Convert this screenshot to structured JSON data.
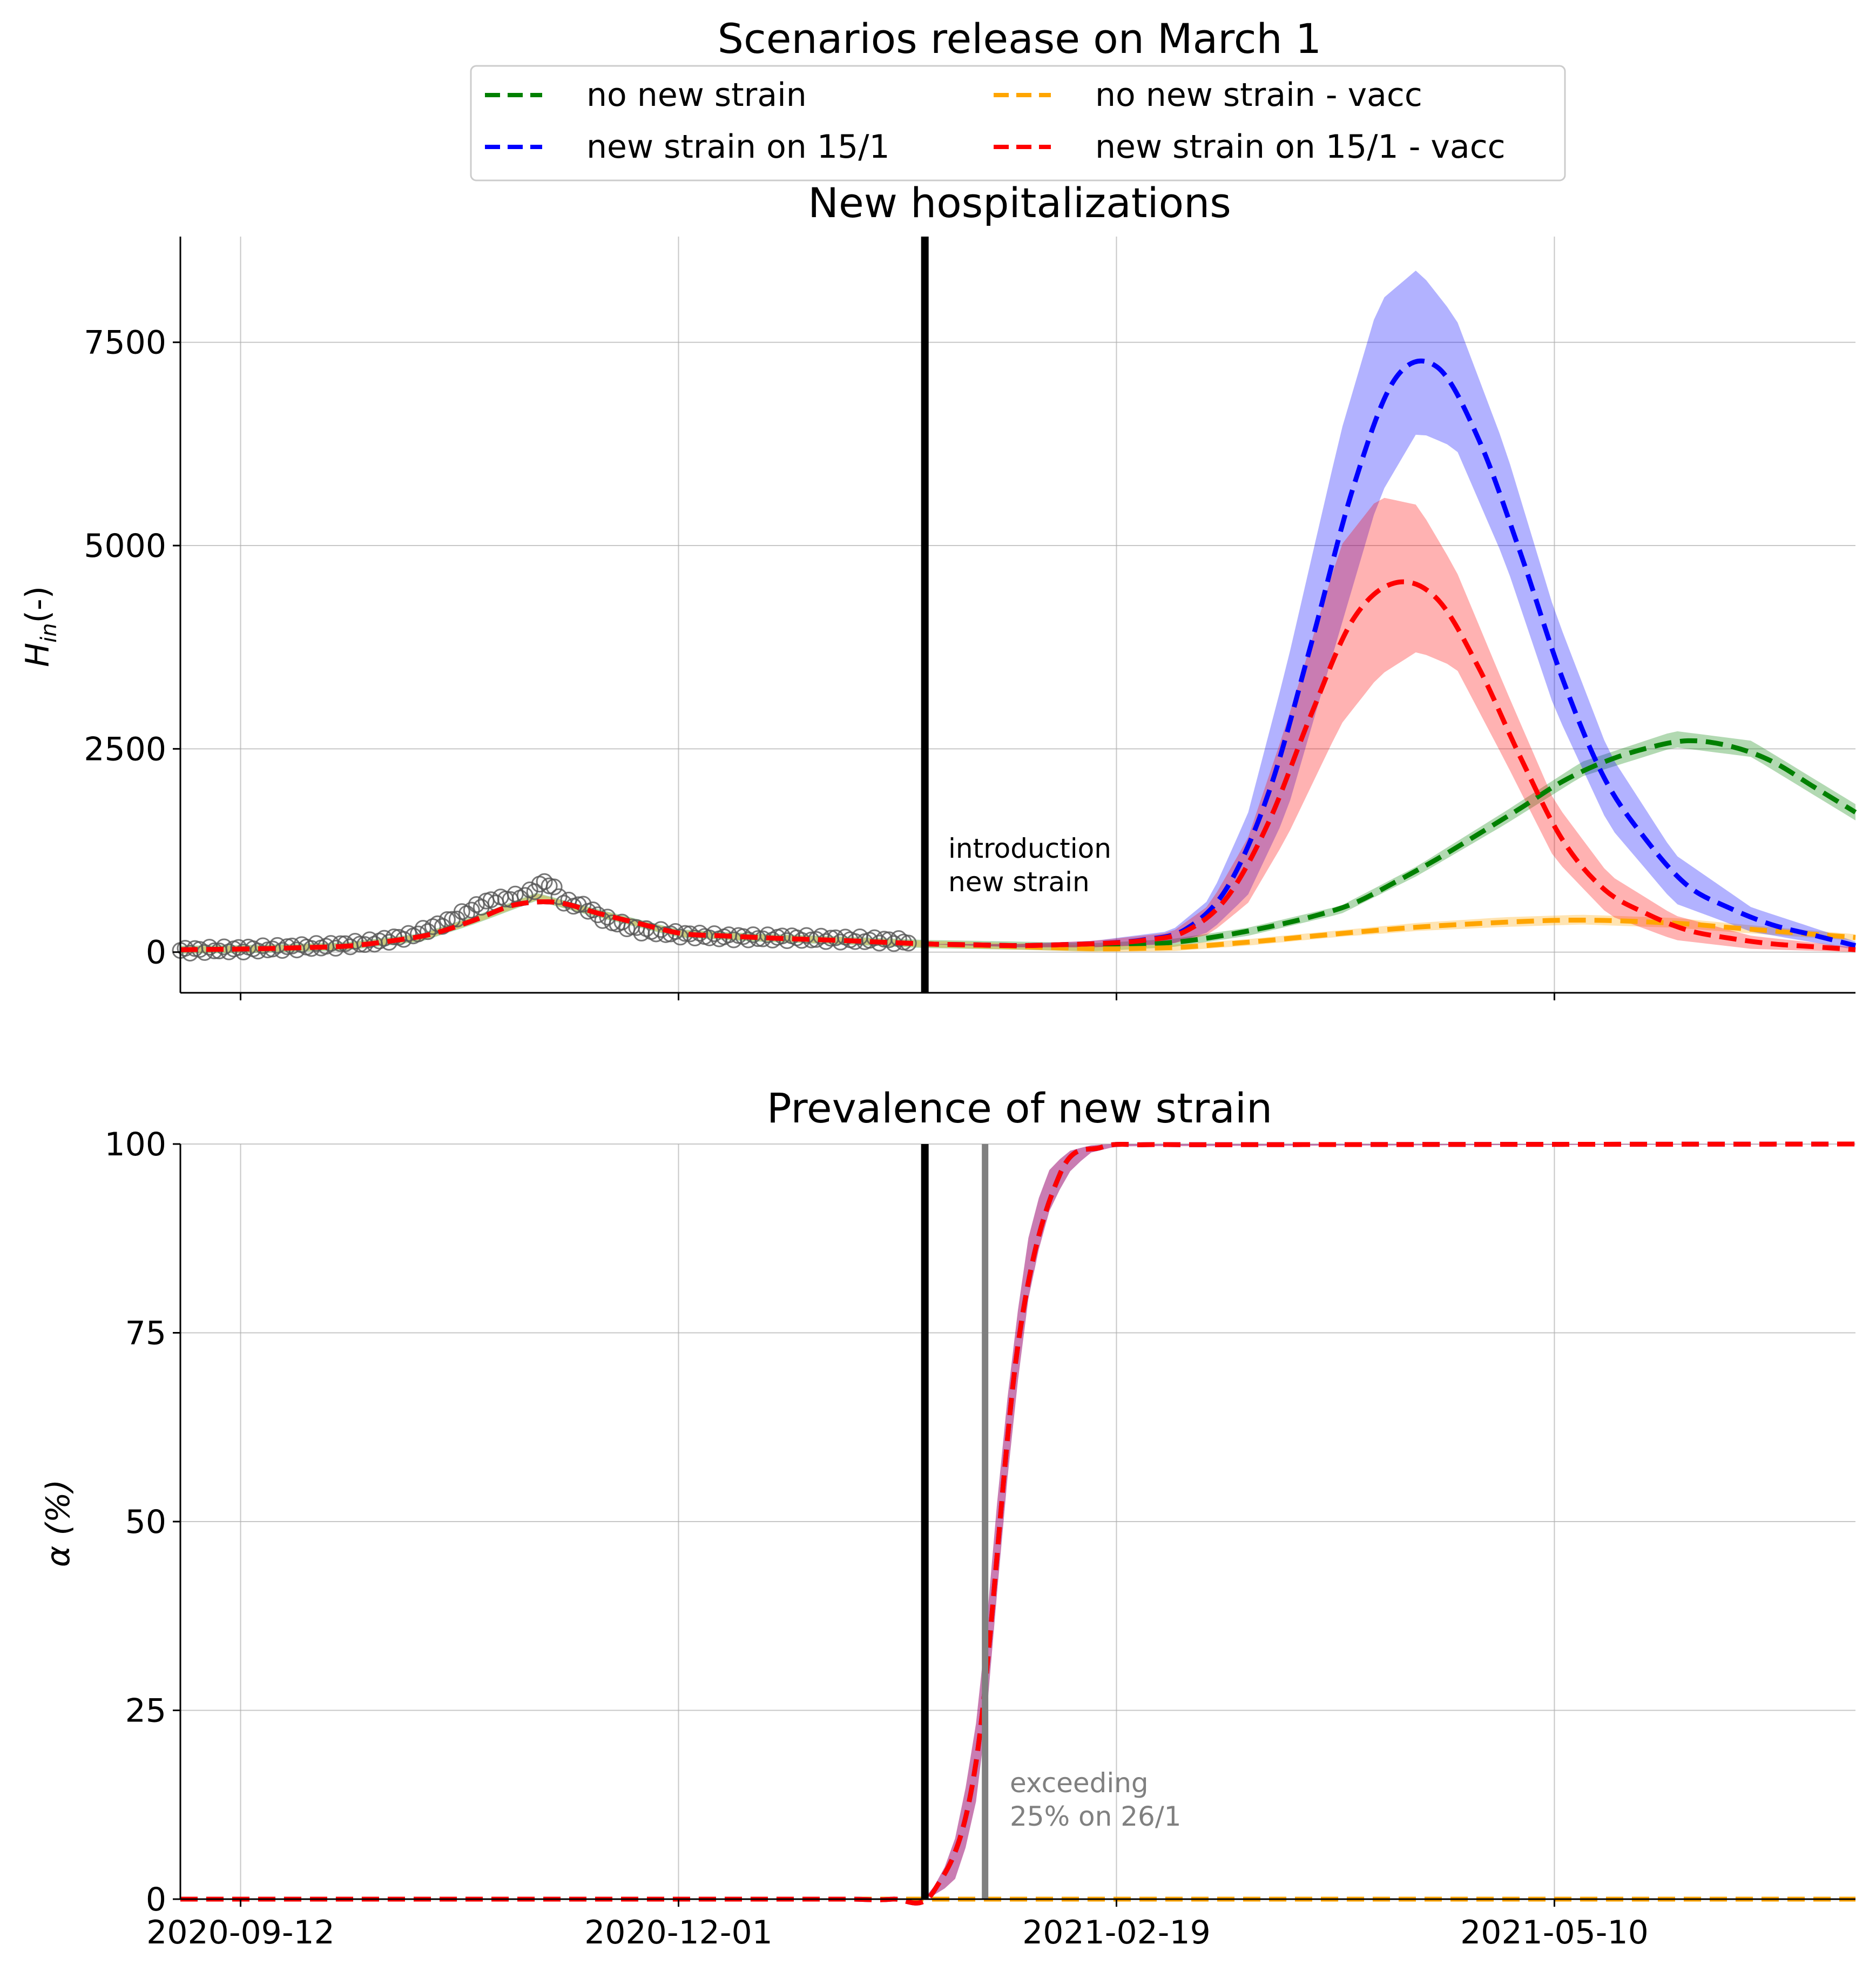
{
  "figure_title": "Scenarios release on  March 1",
  "legend": [
    {
      "label": "no new strain",
      "color": "#008000"
    },
    {
      "label": "no new strain - vacc",
      "color": "#FFA500"
    },
    {
      "label": "new strain on 15/1",
      "color": "#0000FF"
    },
    {
      "label": "new strain on 15/1 - vacc",
      "color": "#FF0000"
    }
  ],
  "chart_data": [
    {
      "type": "line",
      "title": "New hospitalizations",
      "ylabel": "H",
      "ylabel_sub": "in",
      "ylabel_suffix": "(-)",
      "x_range": [
        "2020-09-01",
        "2021-07-04"
      ],
      "ylim": [
        -500,
        8800
      ],
      "yticks": [
        0,
        2500,
        5000,
        7500
      ],
      "xticks": [
        "2020-09-12",
        "2020-12-01",
        "2021-02-19",
        "2021-05-10"
      ],
      "grid": true,
      "event_line": {
        "date": "2021-01-15",
        "label": [
          "introduction",
          "new strain"
        ]
      },
      "observed": {
        "dates": [
          "2020-09-01",
          "2020-09-08",
          "2020-09-15",
          "2020-09-22",
          "2020-09-29",
          "2020-10-06",
          "2020-10-13",
          "2020-10-20",
          "2020-10-27",
          "2020-11-03",
          "2020-11-07",
          "2020-11-10",
          "2020-11-14",
          "2020-11-17",
          "2020-11-21",
          "2020-11-24",
          "2020-12-01",
          "2020-12-08",
          "2020-12-15",
          "2020-12-22",
          "2020-12-29",
          "2021-01-05",
          "2021-01-12"
        ],
        "values": [
          20,
          30,
          40,
          60,
          80,
          120,
          200,
          380,
          620,
          700,
          880,
          620,
          560,
          420,
          330,
          270,
          220,
          190,
          180,
          175,
          160,
          150,
          130
        ]
      },
      "series": [
        {
          "name": "no new strain",
          "color": "#008000",
          "x": [
            "2020-09-01",
            "2020-09-15",
            "2020-10-01",
            "2020-10-15",
            "2020-10-25",
            "2020-11-05",
            "2020-11-15",
            "2020-12-01",
            "2020-12-15",
            "2021-01-01",
            "2021-01-15",
            "2021-02-01",
            "2021-02-15",
            "2021-03-01",
            "2021-03-15",
            "2021-04-01",
            "2021-04-15",
            "2021-05-01",
            "2021-05-15",
            "2021-06-01",
            "2021-06-15",
            "2021-07-04"
          ],
          "y": [
            30,
            40,
            70,
            180,
            400,
            680,
            500,
            230,
            180,
            140,
            100,
            80,
            60,
            110,
            250,
            520,
            1000,
            1650,
            2250,
            2620,
            2500,
            1720
          ],
          "band": [
            50,
            50,
            50,
            50,
            50,
            50,
            50,
            50,
            50,
            50,
            50,
            50,
            50,
            50,
            50,
            50,
            60,
            80,
            90,
            100,
            100,
            100
          ]
        },
        {
          "name": "no new strain - vacc",
          "color": "#FFA500",
          "x": [
            "2020-09-01",
            "2020-09-15",
            "2020-10-01",
            "2020-10-15",
            "2020-10-25",
            "2020-11-05",
            "2020-11-15",
            "2020-12-01",
            "2020-12-15",
            "2021-01-01",
            "2021-01-15",
            "2021-02-01",
            "2021-02-15",
            "2021-03-01",
            "2021-03-15",
            "2021-04-01",
            "2021-04-15",
            "2021-05-01",
            "2021-05-15",
            "2021-06-01",
            "2021-06-15",
            "2021-07-04"
          ],
          "y": [
            30,
            40,
            70,
            180,
            400,
            680,
            500,
            230,
            180,
            140,
            100,
            70,
            40,
            50,
            120,
            230,
            310,
            370,
            400,
            360,
            280,
            180
          ],
          "band": [
            40,
            40,
            40,
            40,
            40,
            40,
            40,
            40,
            40,
            40,
            40,
            40,
            40,
            40,
            40,
            40,
            50,
            60,
            60,
            60,
            50,
            40
          ]
        },
        {
          "name": "new strain on 15/1",
          "color": "#0000FF",
          "x": [
            "2020-09-01",
            "2020-09-15",
            "2020-10-01",
            "2020-10-15",
            "2020-10-25",
            "2020-11-05",
            "2020-11-15",
            "2020-12-01",
            "2020-12-15",
            "2021-01-01",
            "2021-01-15",
            "2021-02-01",
            "2021-02-15",
            "2021-03-01",
            "2021-03-08",
            "2021-03-15",
            "2021-03-22",
            "2021-04-01",
            "2021-04-08",
            "2021-04-15",
            "2021-04-22",
            "2021-05-01",
            "2021-05-10",
            "2021-05-20",
            "2021-06-01",
            "2021-06-15",
            "2021-07-04"
          ],
          "y": [
            30,
            40,
            70,
            180,
            400,
            680,
            500,
            230,
            180,
            140,
            100,
            80,
            100,
            180,
            450,
            1200,
            2600,
            5200,
            6800,
            7400,
            7000,
            5500,
            3600,
            2000,
            900,
            400,
            80
          ],
          "band": [
            0,
            0,
            0,
            0,
            0,
            0,
            0,
            0,
            0,
            0,
            0,
            20,
            40,
            80,
            200,
            500,
            900,
            1200,
            1200,
            1000,
            800,
            700,
            600,
            450,
            300,
            150,
            50
          ]
        },
        {
          "name": "new strain on 15/1 - vacc",
          "color": "#FF0000",
          "x": [
            "2020-09-01",
            "2020-09-15",
            "2020-10-01",
            "2020-10-15",
            "2020-10-25",
            "2020-11-05",
            "2020-11-15",
            "2020-12-01",
            "2020-12-15",
            "2021-01-01",
            "2021-01-15",
            "2021-02-01",
            "2021-02-15",
            "2021-03-01",
            "2021-03-08",
            "2021-03-15",
            "2021-03-22",
            "2021-04-01",
            "2021-04-08",
            "2021-04-15",
            "2021-04-22",
            "2021-05-01",
            "2021-05-10",
            "2021-05-20",
            "2021-06-01",
            "2021-06-15",
            "2021-07-04"
          ],
          "y": [
            30,
            40,
            70,
            180,
            400,
            680,
            500,
            230,
            180,
            140,
            100,
            80,
            100,
            170,
            400,
            1000,
            2100,
            3900,
            4500,
            4600,
            4100,
            2800,
            1500,
            700,
            300,
            120,
            30
          ],
          "band": [
            0,
            0,
            0,
            0,
            0,
            0,
            0,
            0,
            0,
            0,
            0,
            20,
            40,
            70,
            180,
            400,
            700,
            1100,
            1100,
            900,
            600,
            450,
            350,
            250,
            150,
            80,
            30
          ]
        }
      ]
    },
    {
      "type": "line",
      "title": "Prevalence of new strain",
      "ylabel": "α (%)",
      "x_range": [
        "2020-09-01",
        "2021-07-04"
      ],
      "ylim": [
        0,
        100
      ],
      "yticks": [
        0,
        25,
        50,
        75,
        100
      ],
      "xticks": [
        "2020-09-12",
        "2020-12-01",
        "2021-02-19",
        "2021-05-10"
      ],
      "grid": true,
      "event_line": {
        "date": "2021-01-15"
      },
      "threshold_line": {
        "date": "2021-01-26",
        "label": [
          "exceeding",
          "25% on 26/1"
        ]
      },
      "series": [
        {
          "name": "no new strain",
          "color": "#008000",
          "x": [
            "2020-09-01",
            "2021-07-04"
          ],
          "y": [
            0,
            0
          ]
        },
        {
          "name": "no new strain - vacc",
          "color": "#FFA500",
          "x": [
            "2020-09-01",
            "2021-07-04"
          ],
          "y": [
            0,
            0
          ]
        },
        {
          "name": "new strain on 15/1",
          "color": "#0000FF",
          "x": [
            "2020-09-01",
            "2021-01-15",
            "2021-01-18",
            "2021-01-21",
            "2021-01-24",
            "2021-01-26",
            "2021-01-28",
            "2021-01-31",
            "2021-02-03",
            "2021-02-06",
            "2021-02-10",
            "2021-02-14",
            "2021-02-19",
            "2021-07-04"
          ],
          "y": [
            0,
            0,
            2,
            6,
            16,
            28,
            45,
            68,
            84,
            93,
            97.5,
            99.3,
            99.9,
            100
          ],
          "band": [
            0,
            0,
            1,
            3,
            5,
            6,
            6,
            5,
            4,
            3,
            1.5,
            0.5,
            0.2,
            0
          ]
        },
        {
          "name": "new strain on 15/1 - vacc",
          "color": "#FF0000",
          "x": [
            "2020-09-01",
            "2021-01-15",
            "2021-01-18",
            "2021-01-21",
            "2021-01-24",
            "2021-01-26",
            "2021-01-28",
            "2021-01-31",
            "2021-02-03",
            "2021-02-06",
            "2021-02-10",
            "2021-02-14",
            "2021-02-19",
            "2021-07-04"
          ],
          "y": [
            0,
            0,
            2,
            6,
            16,
            28,
            45,
            68,
            84,
            93,
            97.5,
            99.3,
            99.9,
            100
          ],
          "band": [
            0,
            0,
            1,
            3,
            5,
            6,
            6,
            5,
            4,
            3,
            1.5,
            0.5,
            0.2,
            0
          ]
        }
      ]
    }
  ]
}
